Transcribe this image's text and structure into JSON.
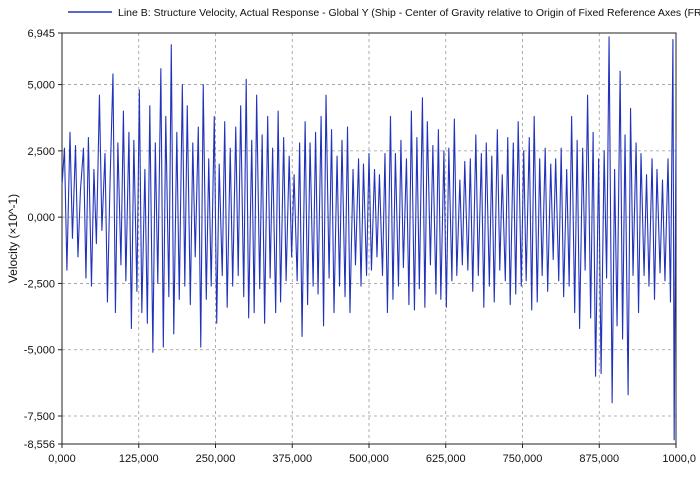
{
  "chart_data": {
    "type": "line",
    "legend": {
      "placement": "top",
      "entries": [
        "Line B: Structure Velocity, Actual Response - Global Y (Ship - Center of Gravity relative to Origin of Fixed Reference Axes (FRA))"
      ]
    },
    "ylabel": "Velocity (×10^-1)",
    "xlabel": "",
    "xlim": [
      0,
      1000
    ],
    "ylim": [
      -8.556,
      6.945
    ],
    "xticks": [
      {
        "value": 0,
        "label": "0,000"
      },
      {
        "value": 125,
        "label": "125,000"
      },
      {
        "value": 250,
        "label": "250,000"
      },
      {
        "value": 375,
        "label": "375,000"
      },
      {
        "value": 500,
        "label": "500,000"
      },
      {
        "value": 625,
        "label": "625,000"
      },
      {
        "value": 750,
        "label": "750,000"
      },
      {
        "value": 875,
        "label": "875,000"
      },
      {
        "value": 1000,
        "label": "1000,0"
      }
    ],
    "yticks": [
      {
        "value": 6.945,
        "label": "6,945"
      },
      {
        "value": 5.0,
        "label": "5,000"
      },
      {
        "value": 2.5,
        "label": "2,500"
      },
      {
        "value": 0.0,
        "label": "0,000"
      },
      {
        "value": -2.5,
        "label": "-2,500"
      },
      {
        "value": -5.0,
        "label": "-5,000"
      },
      {
        "value": -7.5,
        "label": "-7,500"
      },
      {
        "value": -8.556,
        "label": "-8,556"
      }
    ],
    "grid": true,
    "series": [
      {
        "name": "Line B: Structure Velocity, Actual Response - Global Y (Ship - Center of Gravity relative to Origin of Fixed Reference Axes (FRA))",
        "color": "#2233bb",
        "points": [
          [
            0,
            1.2
          ],
          [
            4,
            2.6
          ],
          [
            8,
            -2.0
          ],
          [
            13,
            3.2
          ],
          [
            17,
            -0.8
          ],
          [
            22,
            2.7
          ],
          [
            26,
            -1.5
          ],
          [
            30,
            1.0
          ],
          [
            35,
            2.6
          ],
          [
            39,
            -2.3
          ],
          [
            43,
            3.0
          ],
          [
            48,
            -2.6
          ],
          [
            52,
            1.8
          ],
          [
            56,
            -1.0
          ],
          [
            61,
            4.6
          ],
          [
            65,
            -0.5
          ],
          [
            70,
            2.4
          ],
          [
            74,
            -3.2
          ],
          [
            78,
            1.1
          ],
          [
            83,
            5.4
          ],
          [
            87,
            -3.6
          ],
          [
            91,
            2.8
          ],
          [
            96,
            -1.8
          ],
          [
            100,
            4.0
          ],
          [
            104,
            -2.4
          ],
          [
            109,
            3.2
          ],
          [
            113,
            -4.2
          ],
          [
            117,
            2.9
          ],
          [
            122,
            -2.8
          ],
          [
            126,
            4.8
          ],
          [
            130,
            -3.6
          ],
          [
            135,
            1.8
          ],
          [
            139,
            -4.0
          ],
          [
            143,
            4.2
          ],
          [
            148,
            -5.1
          ],
          [
            152,
            2.8
          ],
          [
            156,
            -2.5
          ],
          [
            161,
            5.6
          ],
          [
            165,
            -4.9
          ],
          [
            169,
            3.8
          ],
          [
            174,
            -3.0
          ],
          [
            178,
            6.5
          ],
          [
            182,
            -4.4
          ],
          [
            187,
            3.2
          ],
          [
            191,
            -3.1
          ],
          [
            196,
            5.0
          ],
          [
            200,
            -2.6
          ],
          [
            204,
            4.2
          ],
          [
            209,
            -3.3
          ],
          [
            213,
            2.8
          ],
          [
            217,
            -1.5
          ],
          [
            222,
            3.4
          ],
          [
            226,
            -4.9
          ],
          [
            230,
            5.0
          ],
          [
            235,
            -3.1
          ],
          [
            239,
            2.2
          ],
          [
            243,
            -2.6
          ],
          [
            248,
            3.8
          ],
          [
            252,
            -4.0
          ],
          [
            256,
            2.0
          ],
          [
            261,
            -2.2
          ],
          [
            265,
            3.6
          ],
          [
            269,
            -3.4
          ],
          [
            274,
            2.6
          ],
          [
            278,
            -2.6
          ],
          [
            283,
            3.4
          ],
          [
            287,
            -2.2
          ],
          [
            291,
            4.2
          ],
          [
            296,
            -3.0
          ],
          [
            300,
            5.2
          ],
          [
            304,
            -3.8
          ],
          [
            309,
            2.9
          ],
          [
            313,
            -3.6
          ],
          [
            317,
            4.6
          ],
          [
            322,
            -2.7
          ],
          [
            326,
            3.1
          ],
          [
            330,
            -4.0
          ],
          [
            335,
            3.8
          ],
          [
            339,
            -2.3
          ],
          [
            343,
            2.6
          ],
          [
            348,
            -3.6
          ],
          [
            352,
            4.0
          ],
          [
            356,
            -3.2
          ],
          [
            361,
            3.0
          ],
          [
            365,
            -2.4
          ],
          [
            370,
            2.3
          ],
          [
            374,
            -1.5
          ],
          [
            378,
            1.6
          ],
          [
            383,
            -2.4
          ],
          [
            387,
            2.8
          ],
          [
            391,
            -4.5
          ],
          [
            396,
            3.6
          ],
          [
            400,
            -3.3
          ],
          [
            404,
            2.8
          ],
          [
            409,
            -2.6
          ],
          [
            413,
            3.2
          ],
          [
            417,
            -2.9
          ],
          [
            422,
            3.8
          ],
          [
            426,
            -4.1
          ],
          [
            430,
            4.6
          ],
          [
            435,
            -2.3
          ],
          [
            439,
            3.3
          ],
          [
            443,
            -3.6
          ],
          [
            448,
            2.3
          ],
          [
            452,
            -2.6
          ],
          [
            456,
            2.9
          ],
          [
            461,
            -3.0
          ],
          [
            465,
            3.4
          ],
          [
            469,
            -3.6
          ],
          [
            474,
            1.8
          ],
          [
            478,
            -1.8
          ],
          [
            483,
            2.2
          ],
          [
            487,
            -2.6
          ],
          [
            491,
            2.0
          ],
          [
            496,
            -2.2
          ],
          [
            500,
            2.4
          ],
          [
            504,
            -2.0
          ],
          [
            509,
            1.8
          ],
          [
            513,
            -1.5
          ],
          [
            517,
            1.6
          ],
          [
            522,
            -2.2
          ],
          [
            526,
            2.4
          ],
          [
            530,
            -3.6
          ],
          [
            535,
            3.8
          ],
          [
            539,
            -3.1
          ],
          [
            543,
            2.4
          ],
          [
            548,
            -2.6
          ],
          [
            552,
            2.9
          ],
          [
            556,
            -1.9
          ],
          [
            561,
            2.2
          ],
          [
            565,
            -3.3
          ],
          [
            569,
            4.0
          ],
          [
            574,
            -3.5
          ],
          [
            578,
            3.0
          ],
          [
            582,
            -2.7
          ],
          [
            587,
            4.5
          ],
          [
            591,
            -3.4
          ],
          [
            595,
            3.6
          ],
          [
            600,
            -1.8
          ],
          [
            604,
            2.7
          ],
          [
            609,
            -2.9
          ],
          [
            613,
            3.3
          ],
          [
            617,
            -3.1
          ],
          [
            622,
            2.5
          ],
          [
            626,
            -3.4
          ],
          [
            630,
            2.6
          ],
          [
            635,
            -2.4
          ],
          [
            639,
            3.7
          ],
          [
            643,
            -2.2
          ],
          [
            648,
            1.4
          ],
          [
            652,
            -1.8
          ],
          [
            656,
            2.1
          ],
          [
            661,
            -2.0
          ],
          [
            665,
            2.2
          ],
          [
            669,
            -2.8
          ],
          [
            674,
            3.1
          ],
          [
            678,
            -2.2
          ],
          [
            683,
            2.4
          ],
          [
            687,
            -3.4
          ],
          [
            691,
            2.8
          ],
          [
            696,
            -2.6
          ],
          [
            700,
            2.3
          ],
          [
            704,
            -3.2
          ],
          [
            709,
            3.3
          ],
          [
            713,
            -2.0
          ],
          [
            717,
            1.6
          ],
          [
            722,
            -2.4
          ],
          [
            726,
            3.0
          ],
          [
            730,
            -3.3
          ],
          [
            735,
            2.8
          ],
          [
            739,
            -2.9
          ],
          [
            743,
            3.6
          ],
          [
            748,
            -2.6
          ],
          [
            752,
            2.5
          ],
          [
            756,
            -2.4
          ],
          [
            761,
            3.0
          ],
          [
            765,
            -3.5
          ],
          [
            769,
            3.8
          ],
          [
            774,
            -3.2
          ],
          [
            778,
            2.2
          ],
          [
            782,
            -2.2
          ],
          [
            787,
            2.6
          ],
          [
            791,
            -2.8
          ],
          [
            796,
            2.0
          ],
          [
            800,
            -1.6
          ],
          [
            804,
            2.2
          ],
          [
            809,
            -2.4
          ],
          [
            813,
            2.6
          ],
          [
            817,
            -3.0
          ],
          [
            822,
            1.8
          ],
          [
            826,
            -2.6
          ],
          [
            830,
            3.8
          ],
          [
            835,
            -3.6
          ],
          [
            839,
            2.9
          ],
          [
            843,
            -4.2
          ],
          [
            848,
            2.6
          ],
          [
            852,
            -2.0
          ],
          [
            856,
            4.6
          ],
          [
            861,
            -3.8
          ],
          [
            865,
            3.2
          ],
          [
            869,
            -6.0
          ],
          [
            874,
            2.2
          ],
          [
            878,
            -5.9
          ],
          [
            883,
            2.5
          ],
          [
            887,
            -2.3
          ],
          [
            891,
            6.8
          ],
          [
            896,
            -7.0
          ],
          [
            900,
            1.8
          ],
          [
            904,
            -4.1
          ],
          [
            909,
            5.5
          ],
          [
            913,
            -4.6
          ],
          [
            917,
            3.1
          ],
          [
            922,
            -6.7
          ],
          [
            926,
            4.1
          ],
          [
            930,
            -2.2
          ],
          [
            935,
            2.8
          ],
          [
            939,
            -3.6
          ],
          [
            943,
            2.4
          ],
          [
            948,
            -2.2
          ],
          [
            952,
            1.6
          ],
          [
            956,
            -2.6
          ],
          [
            961,
            2.2
          ],
          [
            965,
            -3.1
          ],
          [
            969,
            1.8
          ],
          [
            974,
            -2.1
          ],
          [
            978,
            1.4
          ],
          [
            982,
            -2.4
          ],
          [
            987,
            2.2
          ],
          [
            991,
            -3.2
          ],
          [
            995,
            6.7
          ],
          [
            997,
            -8.4
          ],
          [
            1000,
            3.0
          ]
        ]
      }
    ]
  }
}
